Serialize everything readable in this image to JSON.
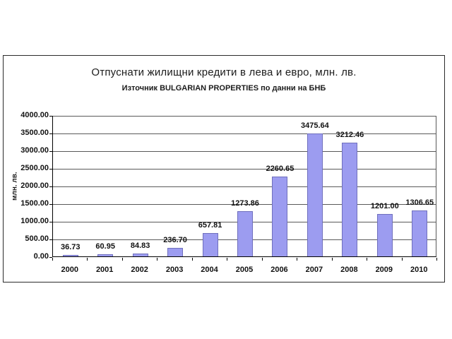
{
  "chart_data": {
    "type": "bar",
    "title": "Отпуснати жилищни кредити в лева и евро, млн. лв.",
    "subtitle": "Източник BULGARIAN PROPERTIES по данни на БНБ",
    "ylabel": "млн. лв.",
    "xlabel": "",
    "categories": [
      "2000",
      "2001",
      "2002",
      "2003",
      "2004",
      "2005",
      "2006",
      "2007",
      "2008",
      "2009",
      "2010"
    ],
    "values": [
      36.73,
      60.95,
      84.83,
      236.7,
      657.81,
      1273.86,
      2260.65,
      3475.64,
      3212.46,
      1201.0,
      1306.65
    ],
    "data_labels": [
      "36.73",
      "60.95",
      "84.83",
      "236.70",
      "657.81",
      "1273.86",
      "2260.65",
      "3475.64",
      "3212.46",
      "1201.00",
      "1306.65"
    ],
    "ylim": [
      0,
      4000
    ],
    "ytick_step": 500,
    "ytick_labels": [
      "0.00",
      "500.00",
      "1000.00",
      "1500.00",
      "2000.00",
      "2500.00",
      "3000.00",
      "3500.00",
      "4000.00"
    ],
    "grid": true,
    "legend": "none",
    "colors": {
      "bar_fill": "#9c9cf0",
      "bar_border": "#6f6fbd",
      "gridline": "#595959",
      "axis": "#000000",
      "frame_border": "#2b2b2b",
      "text": "#1c1c1c",
      "background": "#ffffff"
    }
  }
}
